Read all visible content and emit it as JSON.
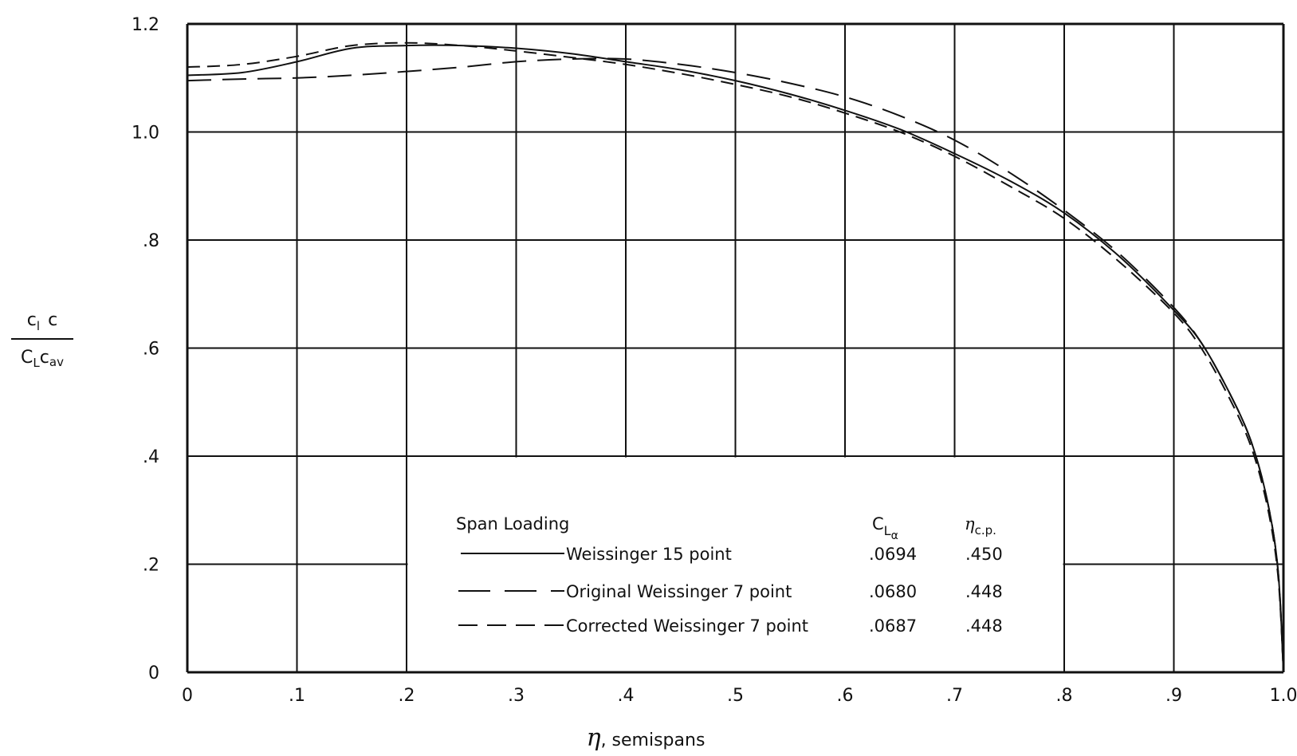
{
  "chart_data": {
    "type": "line",
    "xlabel": {
      "symbol": "η",
      "text": ", semispans"
    },
    "ylabel": {
      "numerator_main": "c",
      "numerator_sub": "l",
      "numerator_tail": "c",
      "denominator_main": "C",
      "denominator_sub": "L",
      "denominator_tail": "c",
      "denominator_tail_sub": "av"
    },
    "xlim": [
      0,
      1.0
    ],
    "ylim": [
      0,
      1.2
    ],
    "x_tick_labels": [
      "0",
      ".1",
      ".2",
      ".3",
      ".4",
      ".5",
      ".6",
      ".7",
      ".8",
      ".9",
      "1.0"
    ],
    "y_tick_labels": [
      "0",
      ".2",
      ".4",
      ".6",
      ".8",
      "1.0",
      "1.2"
    ],
    "grid": true,
    "legend": {
      "position": "bottom-center",
      "header_label": "Span Loading",
      "header_cla": {
        "main": "C",
        "sub": "L",
        "subsub": "α"
      },
      "header_eta": {
        "main": "η",
        "sub": "c.p."
      }
    },
    "series": [
      {
        "name": "Weissinger 15 point",
        "style": "solid",
        "cla": ".0694",
        "eta_cp": ".450",
        "x": [
          0,
          0.05,
          0.1,
          0.15,
          0.2,
          0.25,
          0.3,
          0.35,
          0.4,
          0.45,
          0.5,
          0.55,
          0.6,
          0.65,
          0.7,
          0.75,
          0.8,
          0.85,
          0.9,
          0.925,
          0.95,
          0.97,
          0.985,
          0.995,
          1.0
        ],
        "y": [
          1.105,
          1.11,
          1.13,
          1.155,
          1.16,
          1.16,
          1.155,
          1.145,
          1.13,
          1.115,
          1.095,
          1.07,
          1.04,
          1.005,
          0.96,
          0.91,
          0.85,
          0.77,
          0.67,
          0.61,
          0.52,
          0.43,
          0.32,
          0.19,
          0.0
        ]
      },
      {
        "name": "Original Weissinger 7 point",
        "style": "long-dash",
        "cla": ".0680",
        "eta_cp": ".448",
        "x": [
          0,
          0.05,
          0.1,
          0.15,
          0.2,
          0.25,
          0.3,
          0.35,
          0.4,
          0.45,
          0.5,
          0.55,
          0.6,
          0.65,
          0.7,
          0.75,
          0.8,
          0.85,
          0.9,
          0.925,
          0.95,
          0.97,
          0.985,
          0.995,
          1.0
        ],
        "y": [
          1.095,
          1.098,
          1.1,
          1.105,
          1.112,
          1.12,
          1.13,
          1.135,
          1.135,
          1.125,
          1.11,
          1.09,
          1.065,
          1.03,
          0.985,
          0.925,
          0.855,
          0.775,
          0.675,
          0.61,
          0.52,
          0.43,
          0.32,
          0.19,
          0.0
        ]
      },
      {
        "name": "Corrected Weissinger 7 point",
        "style": "short-dash",
        "cla": ".0687",
        "eta_cp": ".448",
        "x": [
          0,
          0.05,
          0.1,
          0.15,
          0.2,
          0.25,
          0.3,
          0.35,
          0.4,
          0.45,
          0.5,
          0.55,
          0.6,
          0.65,
          0.7,
          0.75,
          0.8,
          0.85,
          0.9,
          0.925,
          0.95,
          0.97,
          0.985,
          0.995,
          1.0
        ],
        "y": [
          1.12,
          1.125,
          1.14,
          1.16,
          1.165,
          1.16,
          1.15,
          1.138,
          1.125,
          1.108,
          1.088,
          1.065,
          1.035,
          1.0,
          0.955,
          0.9,
          0.84,
          0.76,
          0.665,
          0.6,
          0.51,
          0.42,
          0.31,
          0.18,
          0.0
        ]
      }
    ]
  }
}
